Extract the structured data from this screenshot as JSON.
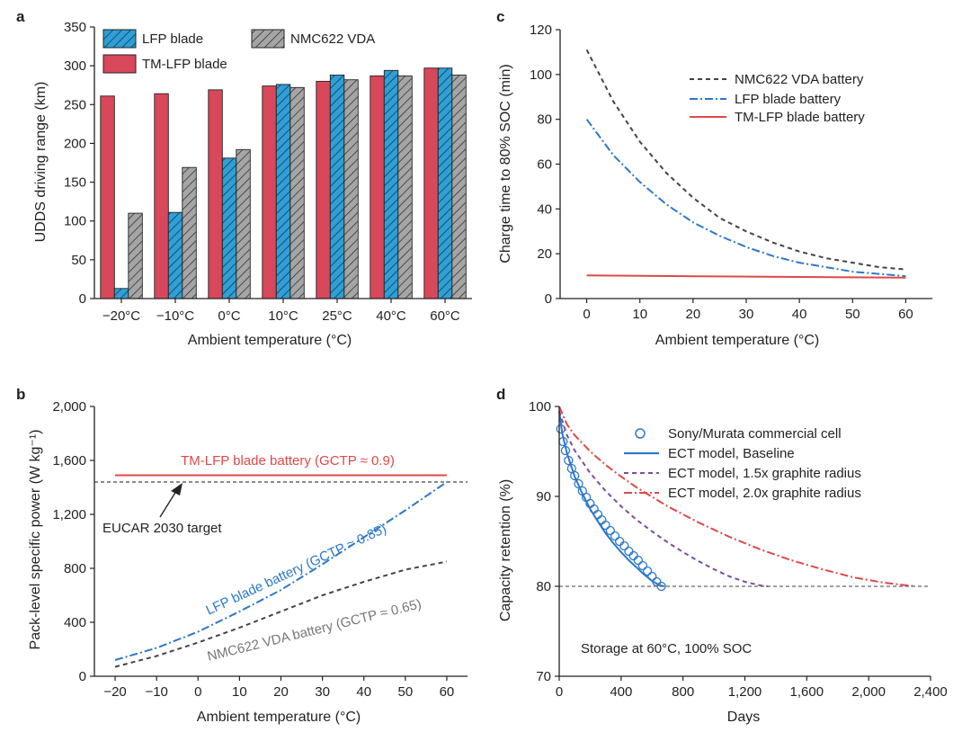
{
  "chart_data": [
    {
      "panel": "a",
      "type": "bar",
      "xlabel": "Ambient temperature (°C)",
      "ylabel": "UDDS driving range (km)",
      "ylim": [
        0,
        350
      ],
      "yticks": [
        0,
        50,
        100,
        150,
        200,
        250,
        300,
        350
      ],
      "categories": [
        "−20°C",
        "−10°C",
        "0°C",
        "10°C",
        "25°C",
        "40°C",
        "60°C"
      ],
      "series": [
        {
          "name": "TM-LFP blade",
          "color": "#d9475a",
          "pattern": "solid",
          "values": [
            261,
            264,
            269,
            274,
            280,
            287,
            297
          ]
        },
        {
          "name": "LFP blade",
          "color": "#2f9fd6",
          "pattern": "hatch",
          "values": [
            13,
            111,
            181,
            276,
            288,
            294,
            297
          ]
        },
        {
          "name": "NMC622 VDA",
          "color": "#a5a5a5",
          "pattern": "hatch",
          "values": [
            110,
            169,
            192,
            272,
            282,
            287,
            288
          ]
        }
      ],
      "legend": [
        "LFP blade",
        "NMC622 VDA",
        "TM-LFP blade"
      ],
      "legend_position": "top-left"
    },
    {
      "panel": "c",
      "type": "line",
      "xlabel": "Ambient temperature (°C)",
      "ylabel": "Charge time to 80% SOC (min)",
      "xlim": [
        -5,
        65
      ],
      "ylim": [
        0,
        120
      ],
      "xticks": [
        0,
        10,
        20,
        30,
        40,
        50,
        60
      ],
      "yticks": [
        0,
        20,
        40,
        60,
        80,
        100,
        120
      ],
      "series": [
        {
          "name": "NMC622 VDA battery",
          "color": "#444444",
          "style": "dashed",
          "x": [
            0,
            5,
            10,
            15,
            20,
            25,
            30,
            35,
            40,
            45,
            50,
            55,
            60
          ],
          "y": [
            111,
            88,
            70,
            56,
            45,
            36,
            30,
            25,
            21,
            18,
            16,
            14,
            13
          ]
        },
        {
          "name": "LFP blade battery",
          "color": "#2c78c8",
          "style": "dashdot",
          "x": [
            0,
            5,
            10,
            15,
            20,
            25,
            30,
            35,
            40,
            45,
            50,
            55,
            60
          ],
          "y": [
            80,
            64,
            52,
            42,
            34,
            28,
            23,
            19,
            16,
            14,
            12,
            11,
            10
          ]
        },
        {
          "name": "TM-LFP blade battery",
          "color": "#e04848",
          "style": "solid",
          "x": [
            0,
            60
          ],
          "y": [
            10.3,
            9.3
          ]
        }
      ],
      "legend_position": "top-right"
    },
    {
      "panel": "b",
      "type": "line",
      "xlabel": "Ambient temperature (°C)",
      "ylabel": "Pack-level specific power (W kg⁻¹)",
      "xlim": [
        -25,
        65
      ],
      "ylim": [
        0,
        2000
      ],
      "xticks": [
        -20,
        -10,
        0,
        10,
        20,
        30,
        40,
        50,
        60
      ],
      "yticks": [
        "0",
        "400",
        "800",
        "1,200",
        "1,600",
        "2,000"
      ],
      "series": [
        {
          "name": "TM-LFP blade battery",
          "color": "#e04848",
          "style": "solid",
          "x": [
            -20,
            60
          ],
          "y": [
            1490,
            1490
          ]
        },
        {
          "name": "LFP blade battery",
          "color": "#2c78c8",
          "style": "dashdot",
          "x": [
            -20,
            -10,
            0,
            10,
            20,
            30,
            40,
            50,
            60
          ],
          "y": [
            120,
            210,
            330,
            480,
            640,
            830,
            1030,
            1230,
            1440
          ]
        },
        {
          "name": "NMC622 VDA battery",
          "color": "#444444",
          "style": "dashed",
          "x": [
            -20,
            -10,
            0,
            10,
            20,
            30,
            40,
            50,
            60
          ],
          "y": [
            70,
            150,
            250,
            360,
            480,
            600,
            700,
            790,
            850
          ]
        },
        {
          "name": "EUCAR 2030 target",
          "color": "#444444",
          "style": "dashed-thin",
          "x": [
            -25,
            65
          ],
          "y": [
            1440,
            1440
          ]
        }
      ],
      "annotations": {
        "tm_lfp": "TM-LFP blade battery  (GCTP ≈ 0.9)",
        "lfp": "LFP blade battery (GCTP ≈ 0.85)",
        "nmc": "NMC622 VDA battery (GCTP ≈ 0.65)",
        "eucar": "EUCAR 2030 target"
      }
    },
    {
      "panel": "d",
      "type": "line",
      "xlabel": "Days",
      "ylabel": "Capacity retention (%)",
      "xlim": [
        0,
        2400
      ],
      "ylim": [
        70,
        100
      ],
      "xticks": [
        "0",
        "400",
        "800",
        "1,200",
        "1,600",
        "2,000",
        "2,400"
      ],
      "yticks": [
        70,
        80,
        90,
        100
      ],
      "series": [
        {
          "name": "Sony/Murata commercial cell",
          "color": "#2c78c8",
          "style": "markers-open-circle",
          "x": [
            10,
            25,
            40,
            60,
            80,
            100,
            125,
            150,
            175,
            200,
            225,
            250,
            275,
            300,
            330,
            360,
            390,
            420,
            450,
            480,
            510,
            540,
            570,
            600,
            630,
            660
          ],
          "y": [
            97.5,
            96.1,
            95.1,
            94.0,
            93.1,
            92.3,
            91.4,
            90.6,
            89.9,
            89.2,
            88.6,
            88.0,
            87.4,
            86.8,
            86.2,
            85.6,
            85.0,
            84.5,
            83.9,
            83.4,
            82.9,
            82.3,
            81.7,
            81.1,
            80.5,
            80.0
          ]
        },
        {
          "name": "ECT model, Baseline",
          "color": "#2c78c8",
          "style": "solid",
          "x": [
            0,
            20,
            50,
            100,
            150,
            200,
            250,
            300,
            350,
            400,
            450,
            500,
            550,
            600,
            650,
            680
          ],
          "y": [
            99.5,
            97.0,
            94.8,
            92.2,
            90.3,
            88.6,
            87.2,
            85.9,
            84.8,
            83.8,
            82.9,
            82.1,
            81.3,
            80.6,
            80.1,
            80.0
          ]
        },
        {
          "name": "ECT model, 1.5x graphite radius",
          "color": "#7e4b9e",
          "style": "dashed",
          "x": [
            0,
            50,
            100,
            200,
            300,
            400,
            500,
            600,
            700,
            800,
            900,
            1000,
            1100,
            1200,
            1300,
            1350
          ],
          "y": [
            99.5,
            96.8,
            95.1,
            92.6,
            90.6,
            88.9,
            87.4,
            86.1,
            84.9,
            83.8,
            82.8,
            81.9,
            81.1,
            80.5,
            80.1,
            80.0
          ]
        },
        {
          "name": "ECT model, 2.0x graphite radius",
          "color": "#e04848",
          "style": "dashdot",
          "x": [
            0,
            50,
            100,
            200,
            300,
            400,
            500,
            700,
            900,
            1100,
            1300,
            1500,
            1700,
            1900,
            2100,
            2300
          ],
          "y": [
            100,
            98.0,
            96.8,
            95.0,
            93.5,
            92.2,
            91.0,
            88.9,
            87.1,
            85.5,
            84.1,
            82.9,
            81.9,
            81.0,
            80.4,
            80.0
          ]
        },
        {
          "name": "80% reference",
          "color": "#666666",
          "style": "dashed-thin",
          "x": [
            0,
            2400
          ],
          "y": [
            80,
            80
          ]
        }
      ],
      "annotation": "Storage at 60°C, 100% SOC",
      "legend_position": "top-right"
    }
  ]
}
